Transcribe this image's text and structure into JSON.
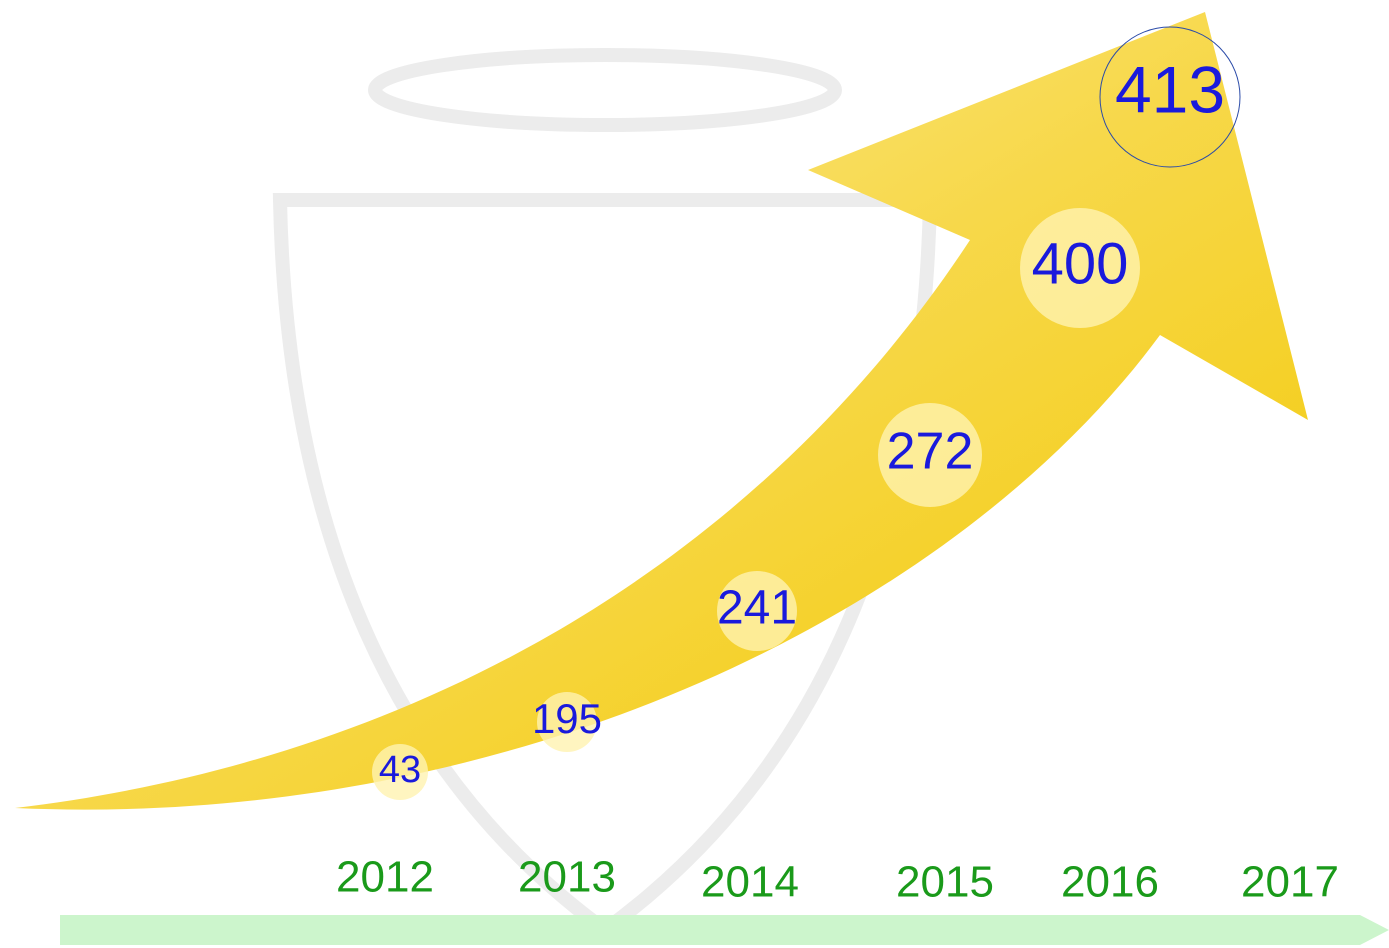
{
  "growth": {
    "values": [
      "43",
      "195",
      "241",
      "272",
      "400",
      "413"
    ]
  },
  "timeline": {
    "years": [
      "2012",
      "2013",
      "2014",
      "2015",
      "2016",
      "2017"
    ]
  }
}
